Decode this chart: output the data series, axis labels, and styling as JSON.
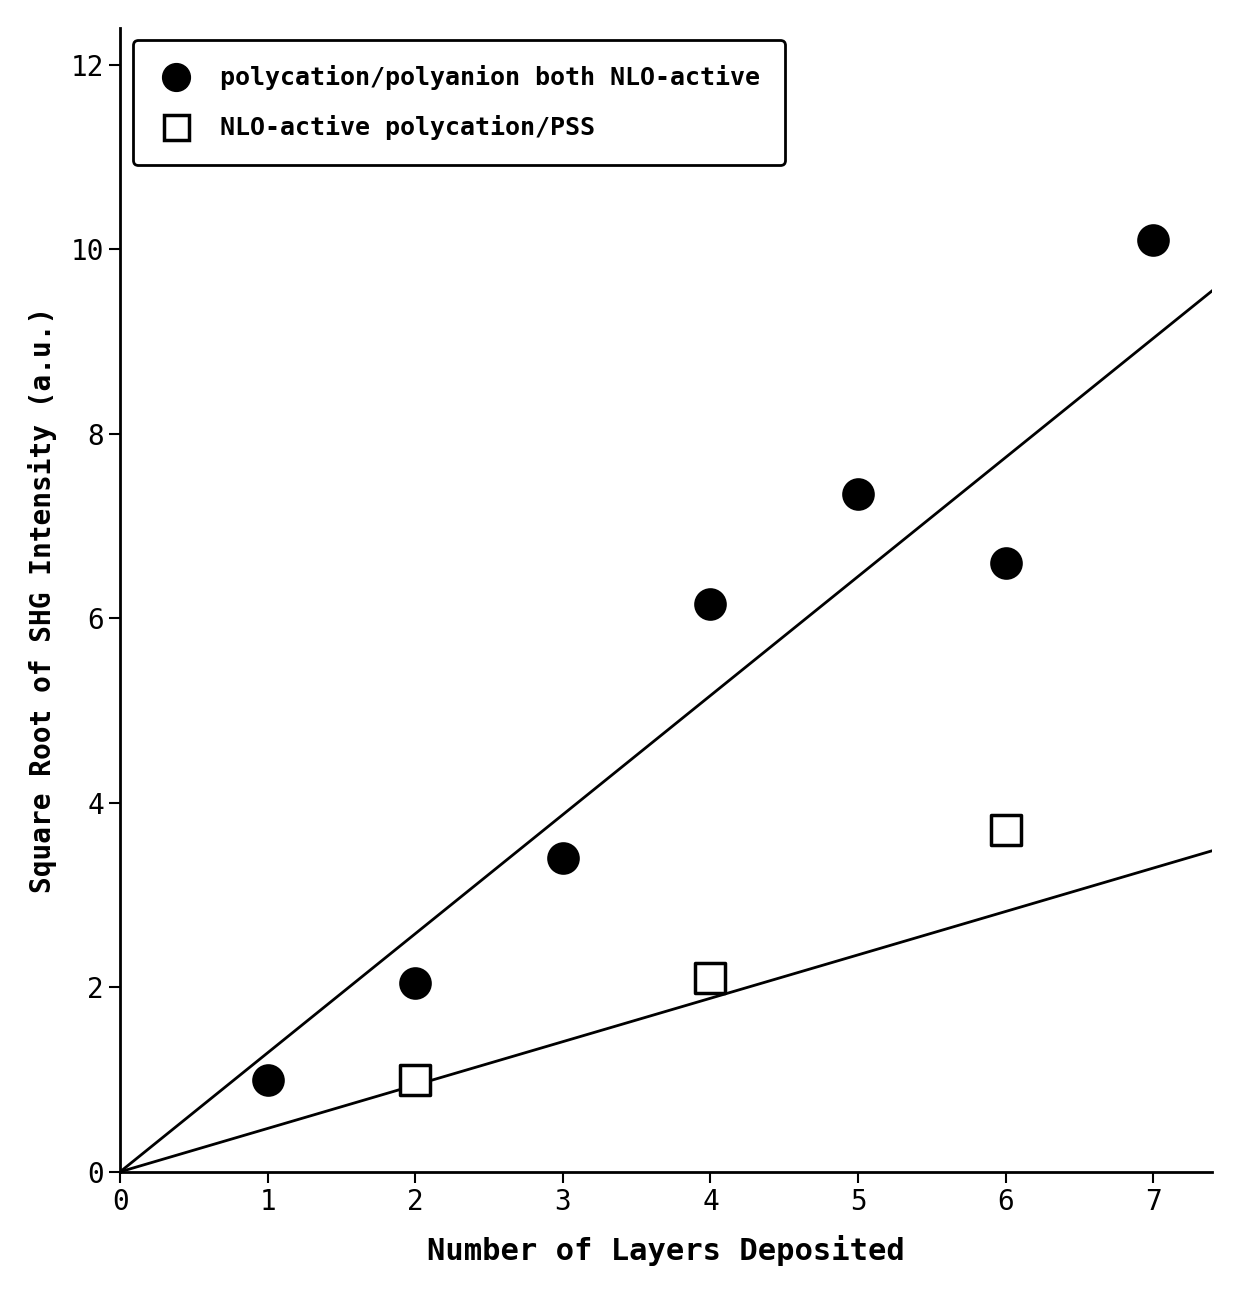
{
  "title": "",
  "xlabel": "Number of Layers Deposited",
  "ylabel": "Square Root of SHG Intensity (a.u.)",
  "xlim": [
    0,
    7.4
  ],
  "ylim": [
    0,
    12.4
  ],
  "xticks": [
    0,
    1,
    2,
    3,
    4,
    5,
    6,
    7
  ],
  "yticks": [
    0,
    2,
    4,
    6,
    8,
    10,
    12
  ],
  "series1_x": [
    1,
    2,
    3,
    4,
    5,
    6,
    7
  ],
  "series1_y": [
    1.0,
    2.05,
    3.4,
    6.15,
    7.35,
    6.6,
    10.1
  ],
  "series2_x": [
    2,
    4,
    6
  ],
  "series2_y": [
    1.0,
    2.1,
    3.7
  ],
  "line1_x": [
    0,
    7.4
  ],
  "line1_y": [
    0,
    9.55
  ],
  "line2_x": [
    0,
    7.4
  ],
  "line2_y": [
    0,
    3.48
  ],
  "legend1_label": "polycation/polyanion both NLO-active",
  "legend2_label": "NLO-active polycation/PSS",
  "marker1_color": "#000000",
  "marker2_color": "#ffffff",
  "marker2_edge_color": "#000000",
  "line_color": "#000000",
  "background_color": "#ffffff",
  "plot_bg_color": "#ffffff",
  "marker1_size": 22,
  "marker2_size": 22,
  "marker2_edge_width": 2.5,
  "line_width": 2.0,
  "xlabel_fontsize": 22,
  "ylabel_fontsize": 20,
  "tick_fontsize": 20,
  "legend_fontsize": 18
}
